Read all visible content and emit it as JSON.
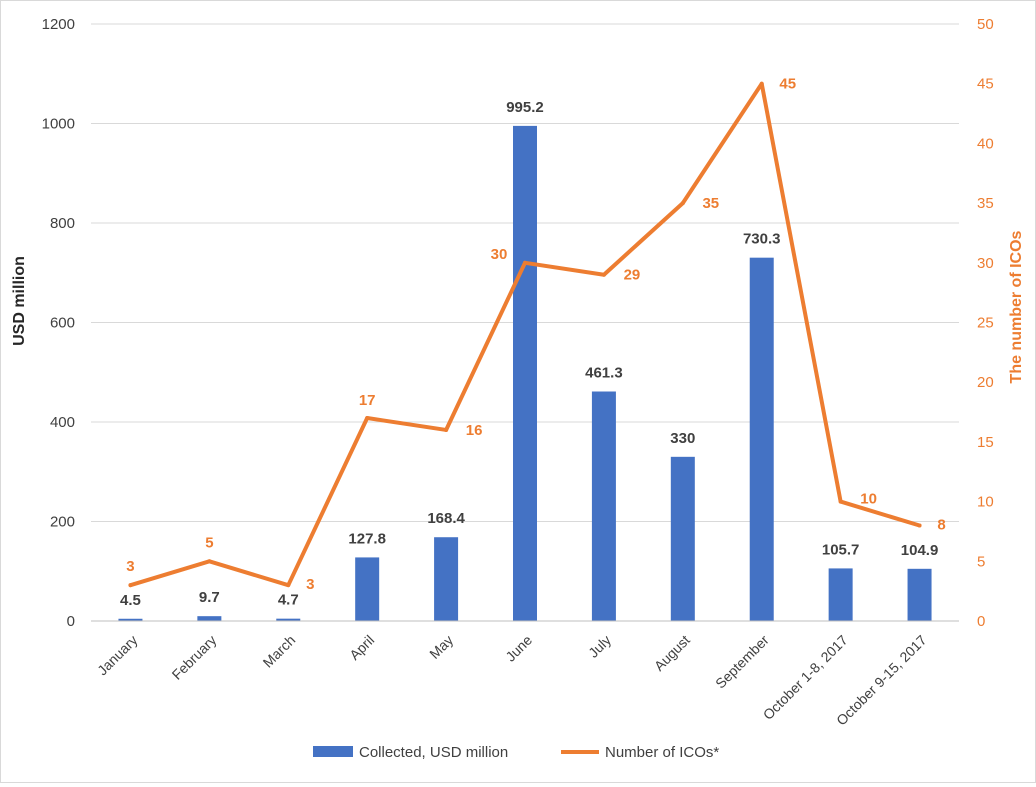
{
  "chart_data": {
    "type": "bar",
    "categories": [
      "January",
      "February",
      "March",
      "April",
      "May",
      "June",
      "July",
      "August",
      "September",
      "October 1-8, 2017",
      "October 9-15, 2017"
    ],
    "series": [
      {
        "name": "Collected, USD million",
        "type": "bar",
        "axis": "left",
        "color": "#4472c4",
        "values": [
          4.5,
          9.7,
          4.7,
          127.8,
          168.4,
          995.2,
          461.3,
          330,
          730.3,
          105.7,
          104.9
        ],
        "labels": [
          "4.5",
          "9.7",
          "4.7",
          "127.8",
          "168.4",
          "995.2",
          "461.3",
          "330",
          "730.3",
          "105.7",
          "104.9"
        ]
      },
      {
        "name": "Number of ICOs*",
        "type": "line",
        "axis": "right",
        "color": "#ed7d31",
        "values": [
          3,
          5,
          3,
          17,
          16,
          30,
          29,
          35,
          45,
          10,
          8
        ],
        "labels": [
          "3",
          "5",
          "3",
          "17",
          "16",
          "30",
          "29",
          "35",
          "45",
          "10",
          "8"
        ]
      }
    ],
    "ylabel": "USD million",
    "y2label": "The number of ICOs",
    "ylim": [
      0,
      1200
    ],
    "y2lim": [
      0,
      50
    ],
    "yticks": [
      "0",
      "200",
      "400",
      "600",
      "800",
      "1000",
      "1200"
    ],
    "y2ticks": [
      "0",
      "5",
      "10",
      "15",
      "20",
      "25",
      "30",
      "35",
      "40",
      "45",
      "50"
    ],
    "grid": true,
    "legend": "bottom"
  }
}
